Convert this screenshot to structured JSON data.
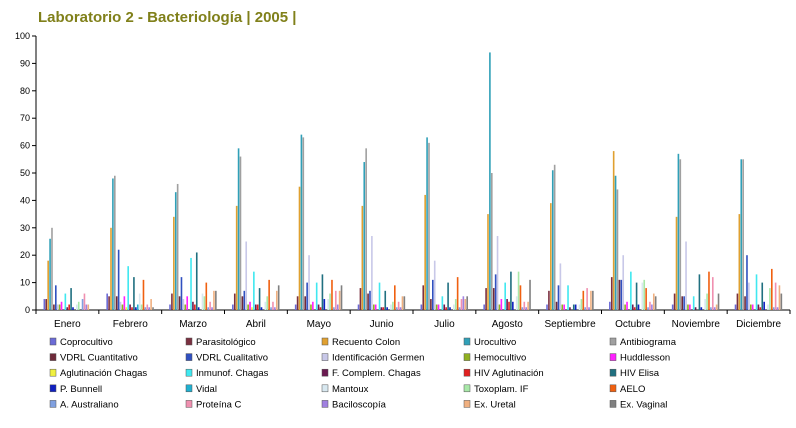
{
  "chart_data": {
    "type": "bar",
    "title": "Laboratorio 2 - Bacteriología | 2005 |",
    "xlabel": "",
    "ylabel": "",
    "ylim": [
      0,
      100
    ],
    "y_ticks": [
      0,
      10,
      20,
      30,
      40,
      50,
      60,
      70,
      80,
      90,
      100
    ],
    "grid": false,
    "legend_position": "bottom",
    "categories": [
      "Enero",
      "Febrero",
      "Marzo",
      "Abril",
      "Mayo",
      "Junio",
      "Julio",
      "Agosto",
      "Septiembre",
      "Octubre",
      "Noviembre",
      "Diciembre"
    ],
    "series": [
      {
        "name": "Coprocultivo",
        "color": "#6b6bd6",
        "values": [
          4,
          6,
          2,
          2,
          2,
          2,
          2,
          2,
          2,
          3,
          2,
          2
        ]
      },
      {
        "name": "Parasitológico",
        "color": "#7a3040",
        "values": [
          4,
          5,
          6,
          6,
          5,
          8,
          9,
          8,
          7,
          12,
          6,
          6
        ]
      },
      {
        "name": "Recuento Colon",
        "color": "#e0a030",
        "values": [
          18,
          30,
          34,
          38,
          45,
          38,
          42,
          35,
          39,
          58,
          34,
          35
        ]
      },
      {
        "name": "Urocultivo",
        "color": "#30a0b8",
        "values": [
          26,
          48,
          43,
          59,
          64,
          54,
          63,
          94,
          51,
          49,
          57,
          55
        ]
      },
      {
        "name": "Antibiograma",
        "color": "#a0a0a0",
        "values": [
          30,
          49,
          46,
          56,
          63,
          59,
          61,
          50,
          53,
          44,
          55,
          55
        ]
      },
      {
        "name": "VDRL Cuantitativo",
        "color": "#6e2a3a",
        "values": [
          2,
          5,
          5,
          5,
          5,
          6,
          4,
          8,
          3,
          11,
          5,
          5
        ]
      },
      {
        "name": "VDRL Cualitativo",
        "color": "#3050c0",
        "values": [
          9,
          22,
          12,
          7,
          10,
          7,
          11,
          13,
          9,
          11,
          5,
          20
        ]
      },
      {
        "name": "Identificación Germen",
        "color": "#c8c8e8",
        "values": [
          2,
          3,
          4,
          25,
          20,
          27,
          18,
          27,
          17,
          20,
          25,
          10
        ]
      },
      {
        "name": "Hemocultivo",
        "color": "#90b020",
        "values": [
          2,
          2,
          2,
          2,
          2,
          2,
          2,
          2,
          2,
          2,
          2,
          2
        ]
      },
      {
        "name": "Huddlesson",
        "color": "#ff20ff",
        "values": [
          3,
          5,
          5,
          3,
          3,
          2,
          2,
          4,
          2,
          3,
          2,
          2
        ]
      },
      {
        "name": "Aglutinación Chagas",
        "color": "#f0f040",
        "values": [
          0,
          1,
          0,
          1,
          0,
          0,
          0,
          0,
          0,
          0,
          0,
          0
        ]
      },
      {
        "name": "Inmunof. Chagas",
        "color": "#40e8f0",
        "values": [
          6,
          16,
          19,
          14,
          10,
          10,
          5,
          10,
          9,
          14,
          5,
          13
        ]
      },
      {
        "name": "F. Complem. Chagas",
        "color": "#6a1a50",
        "values": [
          1,
          2,
          3,
          2,
          2,
          1,
          2,
          4,
          1,
          2,
          1,
          2
        ]
      },
      {
        "name": "HIV Aglutinación",
        "color": "#e02020",
        "values": [
          2,
          1,
          2,
          2,
          1,
          1,
          1,
          3,
          0,
          1,
          0,
          1
        ]
      },
      {
        "name": "HIV Elisa",
        "color": "#207080",
        "values": [
          8,
          12,
          21,
          8,
          13,
          7,
          10,
          14,
          2,
          10,
          13,
          10
        ]
      },
      {
        "name": "P. Bunnell",
        "color": "#1020c0",
        "values": [
          1,
          1,
          1,
          1,
          4,
          1,
          1,
          3,
          2,
          2,
          1,
          3
        ]
      },
      {
        "name": "Vidal",
        "color": "#20b0d0",
        "values": [
          0,
          2,
          0,
          0,
          0,
          0,
          0,
          0,
          0,
          0,
          0,
          0
        ]
      },
      {
        "name": "Mantoux",
        "color": "#d8e8f0",
        "values": [
          2,
          6,
          6,
          3,
          4,
          2,
          2,
          5,
          2,
          10,
          4,
          2
        ]
      },
      {
        "name": "Toxoplam. IF",
        "color": "#a8e8a8",
        "values": [
          3,
          2,
          5,
          5,
          6,
          3,
          4,
          14,
          4,
          11,
          6,
          8
        ]
      },
      {
        "name": "AELO",
        "color": "#f06010",
        "values": [
          0,
          11,
          10,
          11,
          11,
          9,
          12,
          9,
          7,
          8,
          14,
          15
        ]
      },
      {
        "name": "A. Australiano",
        "color": "#80a0e0",
        "values": [
          4,
          1,
          1,
          1,
          1,
          1,
          1,
          1,
          1,
          1,
          1,
          1
        ]
      },
      {
        "name": "Proteína C",
        "color": "#f090b0",
        "values": [
          6,
          2,
          3,
          3,
          7,
          3,
          4,
          3,
          8,
          3,
          12,
          10
        ]
      },
      {
        "name": "Baciloscopía",
        "color": "#a080e0",
        "values": [
          2,
          1,
          1,
          1,
          2,
          1,
          5,
          1,
          1,
          2,
          1,
          1
        ]
      },
      {
        "name": "Ex. Uretal",
        "color": "#f0b080",
        "values": [
          2,
          4,
          7,
          7,
          7,
          5,
          4,
          3,
          7,
          6,
          2,
          9
        ]
      },
      {
        "name": "Ex. Vaginal",
        "color": "#808080",
        "values": [
          0,
          1,
          7,
          9,
          9,
          5,
          5,
          11,
          7,
          5,
          6,
          6
        ]
      }
    ]
  }
}
